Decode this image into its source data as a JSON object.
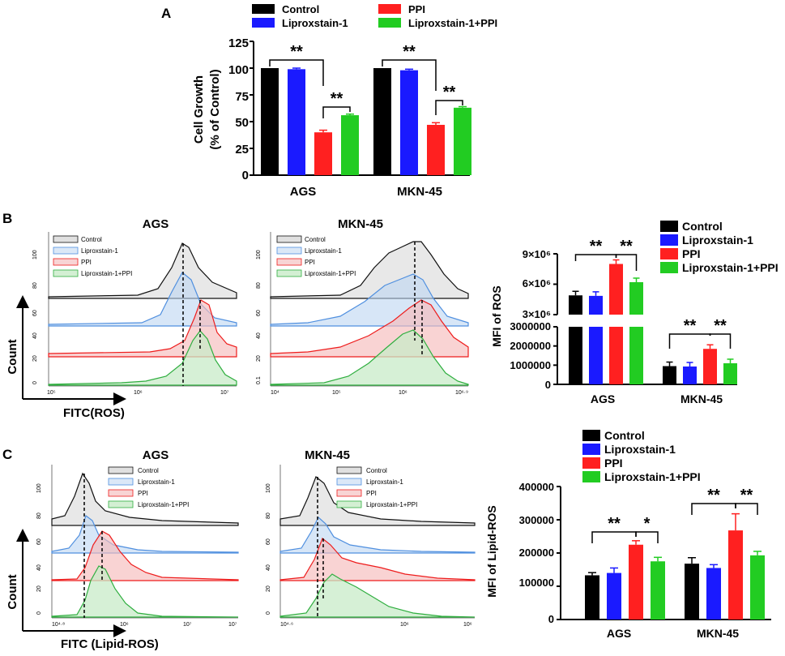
{
  "colors": {
    "control": "#000000",
    "lipro": "#1a1aff",
    "ppi": "#ff2020",
    "combo": "#22cc22",
    "h_black": "#111111",
    "h_blue": "#4f8fdf",
    "h_red": "#ee1c1c",
    "h_green": "#2fae3f"
  },
  "legend_labels": [
    "Control",
    "Liproxstain-1",
    "PPI",
    "Liproxstain-1+PPI"
  ],
  "panels": {
    "A": "A",
    "B": "B",
    "C": "C"
  },
  "chart_data": [
    {
      "id": "A",
      "type": "bar",
      "categories": [
        "AGS",
        "MKN-45"
      ],
      "ylabel_line1": "Cell Growth",
      "ylabel_line2": "(% of Control)",
      "ylim": [
        0,
        125
      ],
      "yticks": [
        "0",
        "25",
        "50",
        "75",
        "100",
        "125"
      ],
      "series": [
        {
          "name": "Control",
          "values": [
            100,
            100
          ],
          "err": [
            0,
            0
          ]
        },
        {
          "name": "Liproxstain-1",
          "values": [
            99,
            98
          ],
          "err": [
            1,
            1
          ]
        },
        {
          "name": "PPI",
          "values": [
            40,
            47
          ],
          "err": [
            2,
            2
          ]
        },
        {
          "name": "Liproxstain-1+PPI",
          "values": [
            56,
            63
          ],
          "err": [
            1,
            1
          ]
        }
      ],
      "sig": [
        {
          "text": "**"
        },
        {
          "text": "**"
        },
        {
          "text": "**"
        },
        {
          "text": "**"
        }
      ]
    },
    {
      "id": "B_hist_AGS",
      "type": "area",
      "title": "AGS",
      "xaxis_title": "FITC(ROS)",
      "yaxis_title": "Count",
      "xticks": [
        "10⁵",
        "10⁶",
        "10⁷"
      ],
      "yticks": [
        "0",
        "20",
        "40",
        "60",
        "80",
        "100"
      ],
      "legend": [
        "Control",
        "Liproxstain-1",
        "PPI",
        "Liproxstain-1+PPI"
      ]
    },
    {
      "id": "B_hist_MKN",
      "type": "area",
      "title": "MKN-45",
      "xticks": [
        "10⁴",
        "10⁵",
        "10⁶",
        "10⁶·⁹"
      ],
      "yticks": [
        "0.1",
        "20",
        "40",
        "60",
        "80",
        "100"
      ],
      "legend": [
        "Control",
        "Liproxstain-1",
        "PPI",
        "Liproxstain-1+PPI"
      ]
    },
    {
      "id": "B_bar",
      "type": "bar",
      "categories": [
        "AGS",
        "MKN-45"
      ],
      "ylabel": "MFI of ROS",
      "upper_ticks": [
        "3×10⁶",
        "6×10⁶",
        "9×10⁶"
      ],
      "lower_ticks": [
        "0",
        "1000000",
        "2000000",
        "3000000"
      ],
      "series": [
        {
          "name": "Control",
          "values": [
            4900000,
            950000
          ]
        },
        {
          "name": "Liproxstain-1",
          "values": [
            4850000,
            930000
          ]
        },
        {
          "name": "PPI",
          "values": [
            8000000,
            1850000
          ]
        },
        {
          "name": "Liproxstain-1+PPI",
          "values": [
            6200000,
            1100000
          ]
        }
      ],
      "sig": [
        {
          "text": "**"
        },
        {
          "text": "**"
        },
        {
          "text": "**"
        },
        {
          "text": "**"
        }
      ]
    },
    {
      "id": "C_hist_AGS",
      "type": "area",
      "title": "AGS",
      "xaxis_title": "FITC (Lipid-ROS)",
      "yaxis_title": "Count",
      "xticks": [
        "10⁴·⁸",
        "10⁶",
        "10⁷",
        "10⁷"
      ],
      "yticks": [
        "0",
        "20",
        "40",
        "60",
        "80",
        "100"
      ],
      "legend": [
        "Control",
        "Liproxstain-1",
        "PPI",
        "Liproxstain-1+PPI"
      ]
    },
    {
      "id": "C_hist_MKN",
      "type": "area",
      "title": "MKN-45",
      "xticks": [
        "10⁴·⁶",
        "10⁶",
        "10⁶"
      ],
      "yticks": [
        "0",
        "20",
        "40",
        "60",
        "80",
        "100"
      ],
      "legend": [
        "Control",
        "Liproxstain-1",
        "PPI",
        "Liproxstain-1+PPI"
      ]
    },
    {
      "id": "C_bar",
      "type": "bar",
      "categories": [
        "AGS",
        "MKN-45"
      ],
      "ylabel": "MFI of Lipid-ROS",
      "ylim": [
        0,
        400000
      ],
      "yticks": [
        "0",
        "100000",
        "200000",
        "300000",
        "400000"
      ],
      "series": [
        {
          "name": "Control",
          "values": [
            133000,
            168000
          ],
          "err": [
            8000,
            18000
          ]
        },
        {
          "name": "Liproxstain-1",
          "values": [
            140000,
            155000
          ],
          "err": [
            15000,
            10000
          ]
        },
        {
          "name": "PPI",
          "values": [
            225000,
            268000
          ],
          "err": [
            12000,
            50000
          ]
        },
        {
          "name": "Liproxstain-1+PPI",
          "values": [
            175000,
            193000
          ],
          "err": [
            12000,
            12000
          ]
        }
      ],
      "sig": [
        {
          "text": "**"
        },
        {
          "text": "*"
        },
        {
          "text": "**"
        },
        {
          "text": "**"
        }
      ]
    }
  ]
}
